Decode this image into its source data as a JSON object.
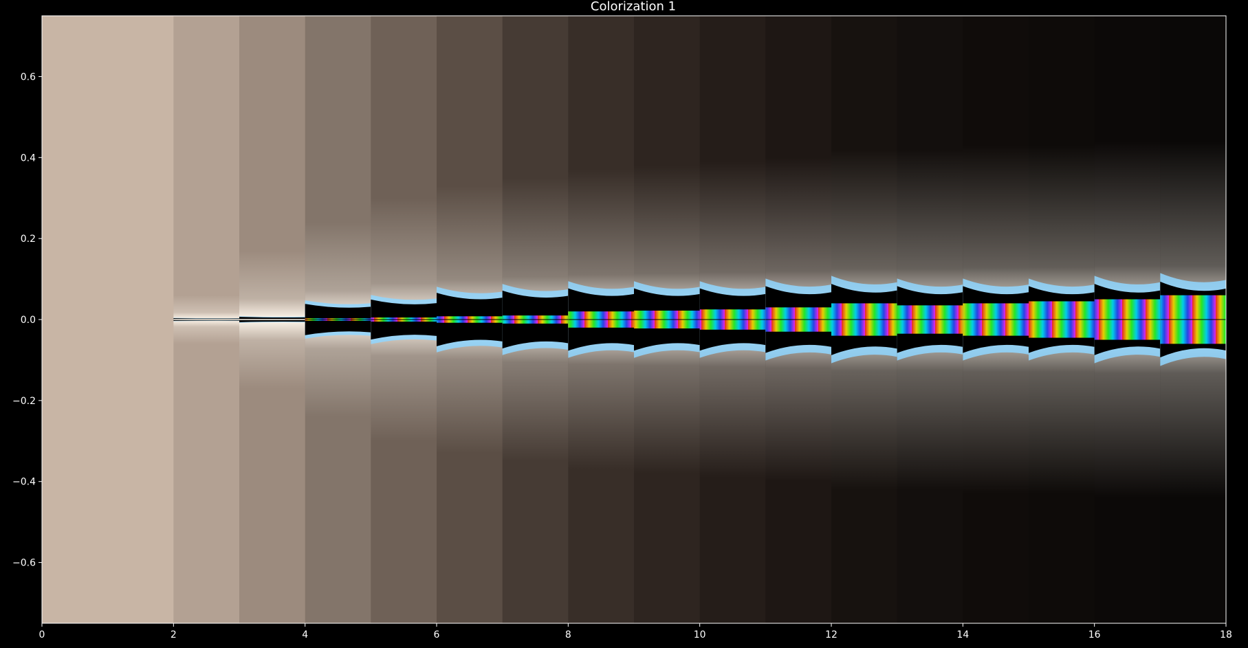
{
  "chart_data": {
    "type": "heatmap",
    "title": "Colorization 1",
    "xlabel": "",
    "ylabel": "",
    "xlim": [
      0,
      18
    ],
    "ylim": [
      -0.75,
      0.75
    ],
    "xticks": [
      0,
      2,
      4,
      6,
      8,
      10,
      12,
      14,
      16,
      18
    ],
    "yticks": [
      -0.6,
      -0.4,
      -0.2,
      0.0,
      0.2,
      0.4,
      0.6
    ],
    "xtick_labels": [
      "0",
      "2",
      "4",
      "6",
      "8",
      "10",
      "12",
      "14",
      "16",
      "18"
    ],
    "ytick_labels": [
      "−0.6",
      "−0.4",
      "−0.2",
      "0.0",
      "0.2",
      "0.4",
      "0.6"
    ],
    "grid": false,
    "legend": "none",
    "bands": [
      {
        "x0": 0,
        "x1": 2,
        "base": "#c8b5a5",
        "core": 0.0,
        "glow": 0.0,
        "chaos": 0.0
      },
      {
        "x0": 2,
        "x1": 3,
        "base": "#b3a193",
        "core": 0.003,
        "glow": 0.06,
        "chaos": 0.0
      },
      {
        "x0": 3,
        "x1": 4,
        "base": "#9c8b7e",
        "core": 0.006,
        "glow": 0.17,
        "chaos": 0.0
      },
      {
        "x0": 4,
        "x1": 5,
        "base": "#83756a",
        "core": 0.035,
        "glow": 0.24,
        "chaos": 0.003
      },
      {
        "x0": 5,
        "x1": 6,
        "base": "#6f6157",
        "core": 0.045,
        "glow": 0.3,
        "chaos": 0.005
      },
      {
        "x0": 6,
        "x1": 7,
        "base": "#5b4e45",
        "core": 0.06,
        "glow": 0.33,
        "chaos": 0.008
      },
      {
        "x0": 7,
        "x1": 8,
        "base": "#463b34",
        "core": 0.065,
        "glow": 0.35,
        "chaos": 0.01
      },
      {
        "x0": 8,
        "x1": 9,
        "base": "#382e28",
        "core": 0.07,
        "glow": 0.37,
        "chaos": 0.02
      },
      {
        "x0": 9,
        "x1": 10,
        "base": "#2e2520",
        "core": 0.07,
        "glow": 0.38,
        "chaos": 0.022
      },
      {
        "x0": 10,
        "x1": 11,
        "base": "#251d19",
        "core": 0.07,
        "glow": 0.39,
        "chaos": 0.025
      },
      {
        "x0": 11,
        "x1": 12,
        "base": "#1e1714",
        "core": 0.075,
        "glow": 0.4,
        "chaos": 0.03
      },
      {
        "x0": 12,
        "x1": 13,
        "base": "#17120f",
        "core": 0.08,
        "glow": 0.42,
        "chaos": 0.04
      },
      {
        "x0": 13,
        "x1": 14,
        "base": "#130f0d",
        "core": 0.075,
        "glow": 0.42,
        "chaos": 0.035
      },
      {
        "x0": 14,
        "x1": 15,
        "base": "#100c0a",
        "core": 0.075,
        "glow": 0.43,
        "chaos": 0.04
      },
      {
        "x0": 15,
        "x1": 16,
        "base": "#0e0b09",
        "core": 0.075,
        "glow": 0.43,
        "chaos": 0.045
      },
      {
        "x0": 16,
        "x1": 17,
        "base": "#0c0908",
        "core": 0.08,
        "glow": 0.44,
        "chaos": 0.05
      },
      {
        "x0": 17,
        "x1": 18,
        "base": "#0a0807",
        "core": 0.085,
        "glow": 0.44,
        "chaos": 0.06
      }
    ],
    "colors": {
      "background": "#000000",
      "text": "#ffffff",
      "glow": "#fff7ec",
      "core": "#000000",
      "ring": "#8fd6ff",
      "fringe": [
        "#ff2a2a",
        "#ffe600",
        "#2aff2a",
        "#00e5ff",
        "#2a4bff",
        "#ff2aff"
      ]
    }
  }
}
